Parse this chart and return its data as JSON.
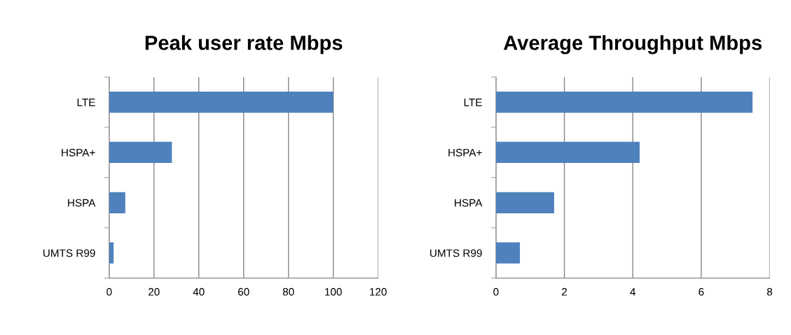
{
  "chart_data": [
    {
      "type": "bar",
      "orientation": "horizontal",
      "title": "Peak user rate Mbps",
      "categories": [
        "LTE",
        "HSPA+",
        "HSPA",
        "UMTS R99"
      ],
      "series": [
        {
          "color": "#4f81bd",
          "values": [
            100,
            28,
            7.2,
            2
          ]
        }
      ],
      "xlim": [
        0,
        120
      ],
      "xticks": [
        0,
        20,
        40,
        60,
        80,
        100,
        120
      ],
      "grid": "x"
    },
    {
      "type": "bar",
      "orientation": "horizontal",
      "title": "Average Throughput Mbps",
      "categories": [
        "LTE",
        "HSPA+",
        "HSPA",
        "UMTS R99"
      ],
      "series": [
        {
          "color": "#4f81bd",
          "values": [
            7.5,
            4.2,
            1.7,
            0.7
          ]
        }
      ],
      "xlim": [
        0,
        8
      ],
      "xticks": [
        0,
        2,
        4,
        6,
        8
      ],
      "grid": "x"
    }
  ]
}
